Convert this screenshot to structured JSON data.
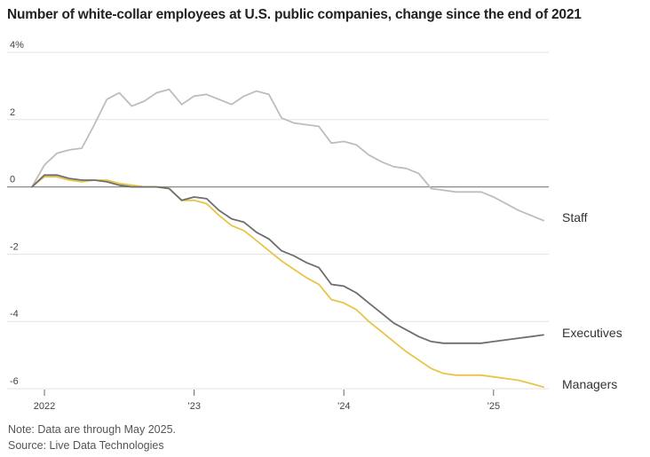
{
  "title": "Number of white-collar employees at U.S. public companies, change since the end of 2021",
  "notes": {
    "note": "Note: Data are through May 2025.",
    "source": "Source: Live Data Technologies"
  },
  "chart_data": {
    "type": "line",
    "title": "Number of white-collar employees at U.S. public companies, change since the end of 2021",
    "xlabel": "",
    "ylabel": "",
    "ylim": [
      -6,
      4
    ],
    "y_ticks": [
      {
        "value": 4,
        "label": "4%"
      },
      {
        "value": 2,
        "label": "2"
      },
      {
        "value": 0,
        "label": "0"
      },
      {
        "value": -2,
        "label": "-2"
      },
      {
        "value": -4,
        "label": "-4"
      },
      {
        "value": -6,
        "label": "-6"
      }
    ],
    "x_ticks": [
      "2022",
      "’23",
      "’24",
      "’25"
    ],
    "x": [
      "2021-12",
      "2022-01",
      "2022-02",
      "2022-03",
      "2022-04",
      "2022-05",
      "2022-06",
      "2022-07",
      "2022-08",
      "2022-09",
      "2022-10",
      "2022-11",
      "2022-12",
      "2023-01",
      "2023-02",
      "2023-03",
      "2023-04",
      "2023-05",
      "2023-06",
      "2023-07",
      "2023-08",
      "2023-09",
      "2023-10",
      "2023-11",
      "2023-12",
      "2024-01",
      "2024-02",
      "2024-03",
      "2024-04",
      "2024-05",
      "2024-06",
      "2024-07",
      "2024-08",
      "2024-09",
      "2024-10",
      "2024-11",
      "2024-12",
      "2025-01",
      "2025-02",
      "2025-03",
      "2025-04",
      "2025-05"
    ],
    "series": [
      {
        "name": "Staff",
        "color": "#bdbdbd",
        "values": [
          0,
          0.65,
          1.0,
          1.1,
          1.15,
          1.85,
          2.6,
          2.8,
          2.4,
          2.55,
          2.8,
          2.9,
          2.45,
          2.7,
          2.75,
          2.6,
          2.45,
          2.7,
          2.85,
          2.75,
          2.05,
          1.9,
          1.85,
          1.8,
          1.3,
          1.35,
          1.25,
          0.95,
          0.75,
          0.6,
          0.55,
          0.4,
          -0.05,
          -0.1,
          -0.15,
          -0.15,
          -0.15,
          -0.3,
          -0.5,
          -0.7,
          -0.85,
          -1.0
        ]
      },
      {
        "name": "Executives",
        "color": "#6e6e6e",
        "values": [
          0,
          0.35,
          0.35,
          0.25,
          0.2,
          0.2,
          0.15,
          0.05,
          0.0,
          0.0,
          0.0,
          -0.05,
          -0.4,
          -0.3,
          -0.35,
          -0.7,
          -0.95,
          -1.05,
          -1.35,
          -1.55,
          -1.9,
          -2.05,
          -2.25,
          -2.4,
          -2.9,
          -2.95,
          -3.15,
          -3.45,
          -3.75,
          -4.05,
          -4.25,
          -4.45,
          -4.6,
          -4.65,
          -4.65,
          -4.65,
          -4.65,
          -4.6,
          -4.55,
          -4.5,
          -4.45,
          -4.4
        ]
      },
      {
        "name": "Managers",
        "color": "#e8c547",
        "values": [
          0,
          0.3,
          0.3,
          0.2,
          0.15,
          0.2,
          0.2,
          0.1,
          0.05,
          0.0,
          0.0,
          -0.05,
          -0.4,
          -0.4,
          -0.5,
          -0.85,
          -1.15,
          -1.3,
          -1.6,
          -1.9,
          -2.2,
          -2.45,
          -2.7,
          -2.9,
          -3.35,
          -3.45,
          -3.65,
          -4.0,
          -4.3,
          -4.6,
          -4.9,
          -5.15,
          -5.4,
          -5.55,
          -5.6,
          -5.6,
          -5.6,
          -5.65,
          -5.7,
          -5.75,
          -5.85,
          -5.95
        ]
      }
    ],
    "grid": true,
    "legend": "direct labels at right end of lines"
  }
}
